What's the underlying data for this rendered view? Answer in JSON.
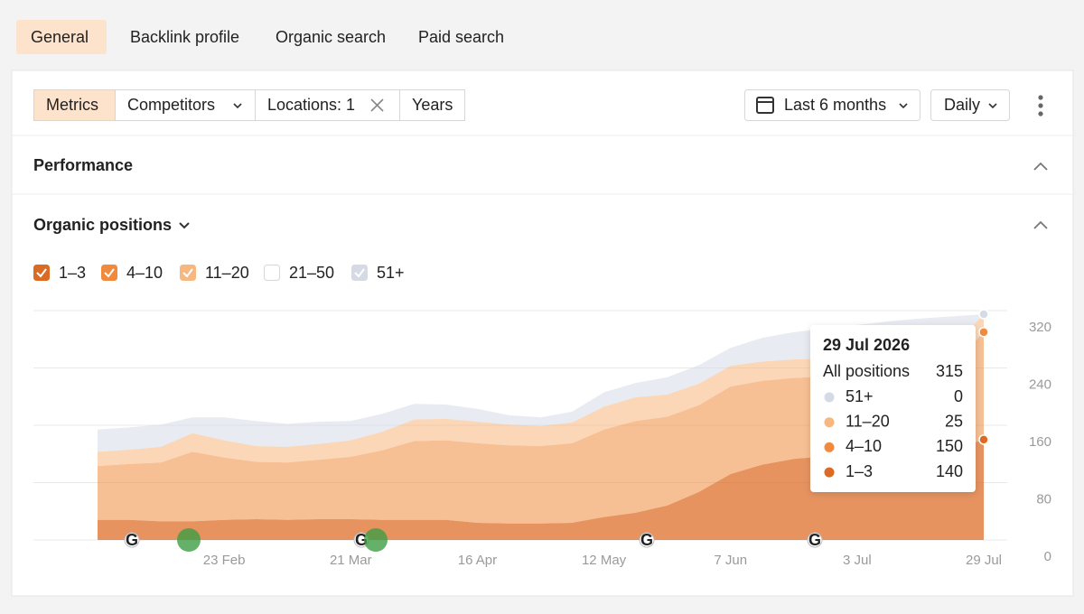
{
  "tabs": [
    "General",
    "Backlink profile",
    "Organic search",
    "Paid search"
  ],
  "active_tab": 0,
  "toolbar": {
    "buttons": [
      "Metrics",
      "Competitors",
      "Locations: 1",
      "Years"
    ],
    "active": 0,
    "date_range": "Last 6 months",
    "granularity": "Daily"
  },
  "sections": {
    "performance": "Performance",
    "organic_positions": "Organic positions"
  },
  "chart_data": {
    "type": "area",
    "stacked": true,
    "categories": [
      null,
      null,
      null,
      null,
      "23 Feb",
      null,
      null,
      null,
      "21 Mar",
      null,
      null,
      null,
      "16 Apr",
      null,
      null,
      null,
      "12 May",
      null,
      null,
      null,
      "7 Jun",
      null,
      null,
      null,
      "3 Jul",
      null,
      null,
      null,
      "29 Jul"
    ],
    "series": [
      {
        "name": "1–3",
        "color": "#dd6a22",
        "checked": true,
        "values": [
          28,
          28,
          26,
          26,
          28,
          29,
          28,
          29,
          29,
          28,
          28,
          28,
          24,
          23,
          23,
          24,
          32,
          38,
          48,
          67,
          92,
          105,
          113,
          117,
          118,
          121,
          123,
          126,
          140
        ]
      },
      {
        "name": "4–10",
        "color": "#f08a3c",
        "checked": true,
        "values": [
          75,
          78,
          82,
          97,
          87,
          80,
          80,
          83,
          87,
          97,
          110,
          111,
          111,
          109,
          108,
          111,
          122,
          128,
          124,
          121,
          122,
          117,
          113,
          111,
          113,
          114,
          114,
          117,
          150
        ]
      },
      {
        "name": "11–20",
        "color": "#f7b77e",
        "checked": true,
        "values": [
          20,
          20,
          22,
          26,
          24,
          22,
          22,
          22,
          23,
          26,
          30,
          30,
          30,
          29,
          28,
          29,
          32,
          33,
          31,
          30,
          29,
          27,
          26,
          25,
          25,
          25,
          25,
          25,
          25
        ]
      },
      {
        "name": "21–50",
        "color": "#ffffff",
        "checked": false,
        "values": [
          null,
          null,
          null,
          null,
          null,
          null,
          null,
          null,
          null,
          null,
          null,
          null,
          null,
          null,
          null,
          null,
          null,
          null,
          null,
          null,
          null,
          null,
          null,
          null,
          null,
          null,
          null,
          null,
          null
        ]
      },
      {
        "name": "51+",
        "color": "#d6dae5",
        "checked": true,
        "values": [
          31,
          31,
          31,
          22,
          32,
          35,
          32,
          31,
          27,
          25,
          22,
          20,
          18,
          13,
          12,
          15,
          20,
          20,
          24,
          26,
          25,
          33,
          38,
          42,
          44,
          45,
          47,
          44,
          0
        ]
      }
    ],
    "ylim": [
      0,
      320
    ],
    "yticks": [
      0,
      80,
      160,
      240,
      320
    ],
    "grid": true,
    "tooltip": {
      "date": "29 Jul 2026",
      "total_label": "All positions",
      "total": 315
    },
    "update_marker_label": "G"
  }
}
